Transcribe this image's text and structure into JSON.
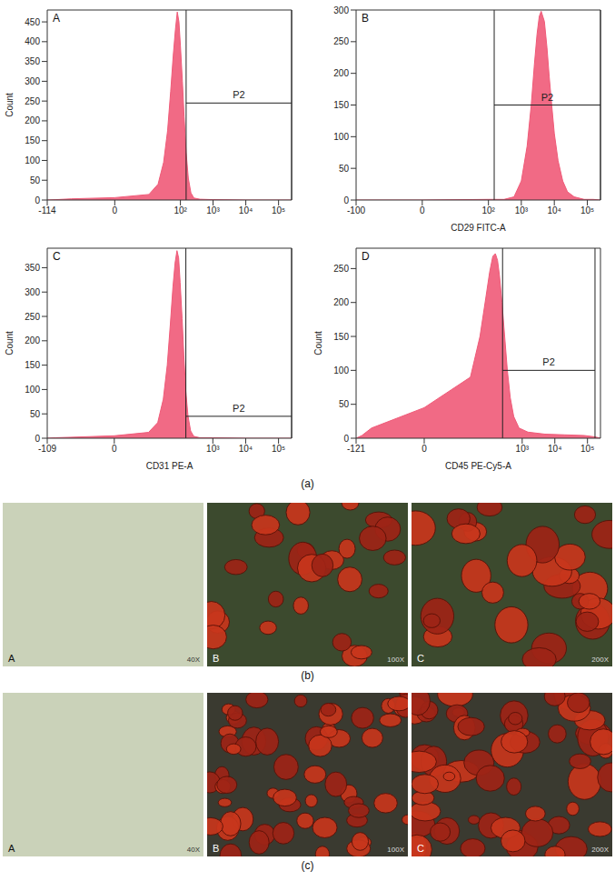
{
  "chart_data": [
    {
      "type": "area",
      "title": "A",
      "ylabel": "Count",
      "color": "#f05a78",
      "log": "x",
      "x": [
        -114,
        -60,
        -20,
        0,
        10,
        20,
        30,
        40,
        50,
        60,
        70,
        80,
        90,
        100,
        115,
        130,
        150,
        175,
        210,
        260,
        400,
        1000,
        10000,
        250000
      ],
      "values": [
        0,
        1,
        3,
        6,
        14,
        40,
        95,
        175,
        275,
        365,
        430,
        475,
        450,
        390,
        300,
        210,
        120,
        55,
        18,
        5,
        2,
        1,
        0,
        0
      ],
      "xlim": [
        -114,
        250000
      ],
      "xticks": [
        -114,
        0,
        {
          "value": 100,
          "label": "10²"
        },
        {
          "value": 1000,
          "label": "10³"
        },
        {
          "value": 10000,
          "label": "10⁴"
        },
        {
          "value": 100000,
          "label": "10⁵"
        }
      ],
      "ylim": [
        0,
        480
      ],
      "yticks": [
        0,
        50,
        100,
        150,
        200,
        250,
        300,
        350,
        400,
        450
      ],
      "gate": {
        "label": "P2",
        "x": [
          150,
          250000
        ],
        "y": 245
      }
    },
    {
      "type": "area",
      "title": "B",
      "xlabel": "CD29 FITC-A",
      "color": "#f05a78",
      "log": "x",
      "x": [
        -100,
        0,
        100,
        300,
        600,
        1000,
        1500,
        2000,
        2500,
        3000,
        3500,
        4000,
        5000,
        6000,
        7000,
        8500,
        10000,
        13000,
        18000,
        25000,
        40000,
        80000,
        150000,
        250000
      ],
      "values": [
        0,
        0,
        1,
        1,
        5,
        30,
        85,
        150,
        215,
        262,
        290,
        298,
        282,
        240,
        195,
        145,
        105,
        62,
        30,
        13,
        5,
        1,
        1,
        0
      ],
      "xlim": [
        -100,
        250000
      ],
      "xticks": [
        -100,
        0,
        {
          "value": 100,
          "label": "10²"
        },
        {
          "value": 1000,
          "label": "10³"
        },
        {
          "value": 10000,
          "label": "10⁴"
        },
        {
          "value": 100000,
          "label": "10⁵"
        }
      ],
      "ylim": [
        0,
        300
      ],
      "yticks": [
        0,
        50,
        100,
        150,
        200,
        250,
        300
      ],
      "gate": {
        "label": "P2",
        "x": [
          150,
          250000
        ],
        "y": 150
      }
    },
    {
      "type": "area",
      "title": "C",
      "ylabel": "Count",
      "xlabel": "CD31 PE-A",
      "color": "#f05a78",
      "log": "x",
      "x": [
        -109,
        -60,
        -20,
        0,
        10,
        20,
        30,
        40,
        50,
        60,
        70,
        80,
        90,
        100,
        115,
        130,
        150,
        175,
        210,
        260,
        400,
        1000,
        10000,
        250000
      ],
      "values": [
        0,
        1,
        2,
        5,
        12,
        32,
        80,
        150,
        235,
        310,
        360,
        385,
        370,
        320,
        245,
        170,
        95,
        45,
        15,
        4,
        1,
        1,
        0,
        0
      ],
      "xlim": [
        -109,
        250000
      ],
      "xticks": [
        -109,
        0,
        {
          "value": 1000,
          "label": "10³"
        },
        {
          "value": 10000,
          "label": "10⁴"
        },
        {
          "value": 100000,
          "label": "10⁵"
        }
      ],
      "ylim": [
        0,
        390
      ],
      "yticks": [
        0,
        50,
        100,
        150,
        200,
        250,
        300,
        350
      ],
      "gate": {
        "label": "P2",
        "x": [
          150,
          250000
        ],
        "y": 45
      }
    },
    {
      "type": "area",
      "title": "D",
      "ylabel": "Count",
      "xlabel": "CD45 PE-Cy5-A",
      "color": "#f05a78",
      "log": "x",
      "x": [
        -121,
        -80,
        -40,
        0,
        25,
        50,
        75,
        100,
        125,
        150,
        175,
        200,
        240,
        290,
        350,
        430,
        550,
        800,
        1500,
        5000,
        20000,
        80000,
        170000,
        250000
      ],
      "values": [
        0,
        4,
        15,
        45,
        90,
        150,
        205,
        245,
        268,
        272,
        262,
        240,
        200,
        150,
        100,
        60,
        32,
        15,
        9,
        6,
        5,
        4,
        2,
        0
      ],
      "xlim": [
        -121,
        250000
      ],
      "xticks": [
        -121,
        0,
        {
          "value": 1000,
          "label": "10³"
        },
        {
          "value": 10000,
          "label": "10⁴"
        },
        {
          "value": 100000,
          "label": "10⁵"
        }
      ],
      "ylim": [
        0,
        280
      ],
      "yticks": [
        0,
        50,
        100,
        150,
        200,
        250
      ],
      "gate": {
        "label": "P2",
        "x": [
          250,
          170000
        ],
        "y": 100
      }
    }
  ],
  "chart_caption": "(a)",
  "micrographs": [
    {
      "caption": "(b)",
      "images": [
        {
          "label": "A",
          "magnification": "40X"
        },
        {
          "label": "B",
          "magnification": "100X"
        },
        {
          "label": "C",
          "magnification": "200X"
        }
      ]
    },
    {
      "caption": "(c)",
      "images": [
        {
          "label": "A",
          "magnification": "40X"
        },
        {
          "label": "B",
          "magnification": "100X"
        },
        {
          "label": "C",
          "magnification": "200X"
        }
      ]
    }
  ]
}
